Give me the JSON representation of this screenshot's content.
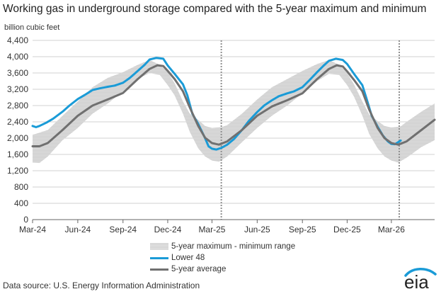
{
  "title": "Working gas in underground  storage compared with the 5-year maximum and minimum",
  "units": "billion cubic feet",
  "source": "Data source:  U.S. Energy Information Administration",
  "logo_text": "eia",
  "colors": {
    "band": "#d9d9d9",
    "lower48": "#1a9bd7",
    "avg": "#707070",
    "grid": "#d0d0d0",
    "marker": "#909090"
  },
  "legend": {
    "band": "5-year maximum - minimum range",
    "lower48": "Lower 48",
    "avg": "5-year average"
  },
  "chart_data": {
    "type": "line",
    "ylim": [
      0,
      4400
    ],
    "yticks": [
      0,
      400,
      800,
      1200,
      1600,
      2000,
      2400,
      2800,
      3200,
      3600,
      4000,
      4400
    ],
    "ytick_labels": [
      "0",
      "400",
      "800",
      "1,200",
      "1,600",
      "2,000",
      "2,400",
      "2,800",
      "3,200",
      "3,600",
      "4,000",
      "4,400"
    ],
    "x_range": [
      "2024-03-01",
      "2026-05-28"
    ],
    "xticks": [
      "2024-03-01",
      "2024-06-01",
      "2024-09-01",
      "2024-12-01",
      "2025-03-01",
      "2025-06-01",
      "2025-09-01",
      "2025-12-01",
      "2026-03-01"
    ],
    "xtick_labels": [
      "Mar-24",
      "Jun-24",
      "Sep-24",
      "Dec-24",
      "Mar-25",
      "Jun-25",
      "Sep-25",
      "Dec-25",
      "Mar-26"
    ],
    "vertical_markers": [
      "2025-03-20",
      "2026-03-17"
    ],
    "band_max": [
      [
        "2024-03-01",
        2080
      ],
      [
        "2024-04-01",
        2200
      ],
      [
        "2024-05-01",
        2550
      ],
      [
        "2024-06-01",
        2900
      ],
      [
        "2024-07-01",
        3250
      ],
      [
        "2024-08-01",
        3480
      ],
      [
        "2024-09-01",
        3620
      ],
      [
        "2024-10-01",
        3800
      ],
      [
        "2024-10-25",
        3920
      ],
      [
        "2024-11-15",
        3800
      ],
      [
        "2024-12-01",
        3620
      ],
      [
        "2024-12-15",
        3350
      ],
      [
        "2025-01-01",
        2900
      ],
      [
        "2025-01-15",
        2600
      ],
      [
        "2025-02-01",
        2450
      ],
      [
        "2025-02-15",
        2300
      ],
      [
        "2025-03-01",
        2250
      ],
      [
        "2025-03-20",
        2270
      ],
      [
        "2025-04-01",
        2320
      ],
      [
        "2025-05-01",
        2600
      ],
      [
        "2025-06-01",
        2950
      ],
      [
        "2025-07-01",
        3250
      ],
      [
        "2025-08-01",
        3450
      ],
      [
        "2025-09-01",
        3650
      ],
      [
        "2025-10-01",
        3820
      ],
      [
        "2025-10-25",
        3920
      ],
      [
        "2025-11-15",
        3800
      ],
      [
        "2025-12-01",
        3600
      ],
      [
        "2025-12-15",
        3320
      ],
      [
        "2026-01-01",
        2900
      ],
      [
        "2026-01-15",
        2580
      ],
      [
        "2026-02-01",
        2420
      ],
      [
        "2026-02-15",
        2300
      ],
      [
        "2026-03-01",
        2260
      ],
      [
        "2026-03-20",
        2290
      ],
      [
        "2026-04-01",
        2400
      ],
      [
        "2026-05-01",
        2650
      ],
      [
        "2026-05-28",
        2850
      ]
    ],
    "band_min": [
      [
        "2024-03-01",
        1400
      ],
      [
        "2024-03-15",
        1390
      ],
      [
        "2024-04-01",
        1550
      ],
      [
        "2024-05-01",
        1950
      ],
      [
        "2024-06-01",
        2250
      ],
      [
        "2024-07-01",
        2600
      ],
      [
        "2024-08-01",
        2850
      ],
      [
        "2024-09-01",
        3150
      ],
      [
        "2024-10-01",
        3450
      ],
      [
        "2024-10-25",
        3600
      ],
      [
        "2024-11-15",
        3550
      ],
      [
        "2024-12-01",
        3300
      ],
      [
        "2024-12-15",
        3050
      ],
      [
        "2025-01-01",
        2600
      ],
      [
        "2025-01-15",
        2150
      ],
      [
        "2025-02-01",
        1750
      ],
      [
        "2025-02-15",
        1550
      ],
      [
        "2025-03-01",
        1450
      ],
      [
        "2025-03-15",
        1420
      ],
      [
        "2025-04-01",
        1550
      ],
      [
        "2025-05-01",
        1900
      ],
      [
        "2025-06-01",
        2250
      ],
      [
        "2025-07-01",
        2550
      ],
      [
        "2025-08-01",
        2800
      ],
      [
        "2025-09-01",
        3100
      ],
      [
        "2025-10-01",
        3400
      ],
      [
        "2025-10-25",
        3580
      ],
      [
        "2025-11-15",
        3550
      ],
      [
        "2025-12-01",
        3300
      ],
      [
        "2025-12-15",
        3020
      ],
      [
        "2026-01-01",
        2550
      ],
      [
        "2026-01-15",
        2100
      ],
      [
        "2026-02-01",
        1750
      ],
      [
        "2026-02-15",
        1550
      ],
      [
        "2026-03-01",
        1450
      ],
      [
        "2026-03-15",
        1400
      ],
      [
        "2026-04-01",
        1520
      ],
      [
        "2026-05-01",
        1780
      ],
      [
        "2026-05-28",
        1950
      ]
    ],
    "series": [
      {
        "key": "lower48",
        "values": [
          [
            "2024-03-01",
            2300
          ],
          [
            "2024-03-08",
            2270
          ],
          [
            "2024-03-15",
            2300
          ],
          [
            "2024-03-29",
            2380
          ],
          [
            "2024-04-12",
            2480
          ],
          [
            "2024-05-01",
            2650
          ],
          [
            "2024-05-15",
            2800
          ],
          [
            "2024-06-01",
            2960
          ],
          [
            "2024-06-15",
            3060
          ],
          [
            "2024-07-01",
            3180
          ],
          [
            "2024-07-15",
            3220
          ],
          [
            "2024-08-01",
            3260
          ],
          [
            "2024-08-15",
            3290
          ],
          [
            "2024-09-01",
            3360
          ],
          [
            "2024-09-15",
            3480
          ],
          [
            "2024-10-01",
            3650
          ],
          [
            "2024-10-15",
            3800
          ],
          [
            "2024-10-25",
            3930
          ],
          [
            "2024-11-08",
            3970
          ],
          [
            "2024-11-22",
            3950
          ],
          [
            "2024-12-01",
            3780
          ],
          [
            "2024-12-15",
            3580
          ],
          [
            "2025-01-01",
            3320
          ],
          [
            "2025-01-10",
            3050
          ],
          [
            "2025-01-20",
            2600
          ],
          [
            "2025-02-01",
            2350
          ],
          [
            "2025-02-15",
            2000
          ],
          [
            "2025-02-22",
            1800
          ],
          [
            "2025-03-01",
            1740
          ],
          [
            "2025-03-10",
            1720
          ],
          [
            "2025-03-20",
            1760
          ],
          [
            "2025-04-01",
            1840
          ],
          [
            "2025-04-15",
            1980
          ],
          [
            "2025-05-01",
            2200
          ],
          [
            "2025-05-15",
            2420
          ],
          [
            "2025-06-01",
            2640
          ],
          [
            "2025-06-15",
            2800
          ],
          [
            "2025-07-01",
            2930
          ],
          [
            "2025-07-15",
            3030
          ],
          [
            "2025-08-01",
            3100
          ],
          [
            "2025-08-15",
            3150
          ],
          [
            "2025-09-01",
            3250
          ],
          [
            "2025-09-15",
            3420
          ],
          [
            "2025-10-01",
            3620
          ],
          [
            "2025-10-15",
            3790
          ],
          [
            "2025-10-25",
            3900
          ],
          [
            "2025-11-08",
            3950
          ],
          [
            "2025-11-22",
            3920
          ],
          [
            "2025-12-01",
            3820
          ],
          [
            "2025-12-15",
            3580
          ],
          [
            "2026-01-01",
            3300
          ],
          [
            "2026-01-10",
            2950
          ],
          [
            "2026-01-20",
            2550
          ],
          [
            "2026-02-01",
            2280
          ],
          [
            "2026-02-12",
            2060
          ],
          [
            "2026-02-22",
            1920
          ],
          [
            "2026-03-01",
            1860
          ],
          [
            "2026-03-08",
            1850
          ],
          [
            "2026-03-20",
            1940
          ]
        ]
      },
      {
        "key": "avg",
        "values": [
          [
            "2024-03-01",
            1800
          ],
          [
            "2024-03-15",
            1800
          ],
          [
            "2024-04-01",
            1880
          ],
          [
            "2024-05-01",
            2200
          ],
          [
            "2024-06-01",
            2550
          ],
          [
            "2024-07-01",
            2800
          ],
          [
            "2024-08-01",
            2950
          ],
          [
            "2024-09-01",
            3110
          ],
          [
            "2024-10-01",
            3450
          ],
          [
            "2024-10-25",
            3700
          ],
          [
            "2024-11-10",
            3790
          ],
          [
            "2024-11-22",
            3770
          ],
          [
            "2024-12-01",
            3650
          ],
          [
            "2024-12-15",
            3450
          ],
          [
            "2025-01-01",
            3150
          ],
          [
            "2025-01-15",
            2750
          ],
          [
            "2025-02-01",
            2300
          ],
          [
            "2025-02-15",
            2010
          ],
          [
            "2025-03-01",
            1880
          ],
          [
            "2025-03-15",
            1840
          ],
          [
            "2025-04-01",
            1920
          ],
          [
            "2025-05-01",
            2200
          ],
          [
            "2025-06-01",
            2550
          ],
          [
            "2025-07-01",
            2780
          ],
          [
            "2025-08-01",
            2930
          ],
          [
            "2025-09-01",
            3100
          ],
          [
            "2025-10-01",
            3450
          ],
          [
            "2025-10-25",
            3700
          ],
          [
            "2025-11-10",
            3790
          ],
          [
            "2025-11-22",
            3760
          ],
          [
            "2025-12-01",
            3640
          ],
          [
            "2025-12-15",
            3430
          ],
          [
            "2026-01-01",
            3150
          ],
          [
            "2026-01-15",
            2700
          ],
          [
            "2026-02-01",
            2250
          ],
          [
            "2026-02-15",
            2000
          ],
          [
            "2026-03-01",
            1880
          ],
          [
            "2026-03-15",
            1840
          ],
          [
            "2026-04-01",
            1920
          ],
          [
            "2026-05-01",
            2200
          ],
          [
            "2026-05-28",
            2450
          ]
        ]
      }
    ]
  }
}
